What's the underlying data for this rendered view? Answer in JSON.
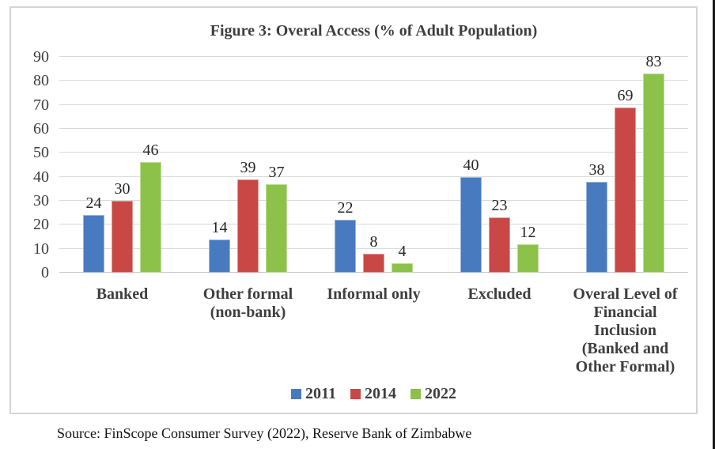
{
  "figure": {
    "title": "Figure 3: Overal Access (% of Adult Population)",
    "source": "Source: FinScope Consumer Survey (2022), Reserve Bank of Zimbabwe"
  },
  "colors": {
    "series_2011": "#487AC0",
    "series_2014": "#C94745",
    "series_2022": "#8CC14A",
    "gridline": "#DADADA",
    "figure_border": "#D4D4D4"
  },
  "chart_data": {
    "type": "bar",
    "title": "Figure 3: Overal Access (% of Adult Population)",
    "categories": [
      "Banked",
      "Other formal (non-bank)",
      "Informal only",
      "Excluded",
      "Overal  Level of Financial Inclusion (Banked and Other Formal)"
    ],
    "categories_display": [
      "Banked",
      "Other formal\n(non-bank)",
      "Informal only",
      "Excluded",
      "Overal  Level of\nFinancial\nInclusion\n(Banked and\nOther Formal)"
    ],
    "series": [
      {
        "name": "2011",
        "color": "#487AC0",
        "values": [
          24,
          14,
          22,
          40,
          38
        ]
      },
      {
        "name": "2014",
        "color": "#C94745",
        "values": [
          30,
          39,
          8,
          23,
          69
        ]
      },
      {
        "name": "2022",
        "color": "#8CC14A",
        "values": [
          46,
          37,
          4,
          12,
          83
        ]
      }
    ],
    "xlabel": "",
    "ylabel": "",
    "ylim": [
      0,
      90
    ],
    "ytick_step": 10,
    "yticks": [
      0,
      10,
      20,
      30,
      40,
      50,
      60,
      70,
      80,
      90
    ],
    "grid": true,
    "legend_position": "bottom",
    "bar_value_labels": true
  }
}
